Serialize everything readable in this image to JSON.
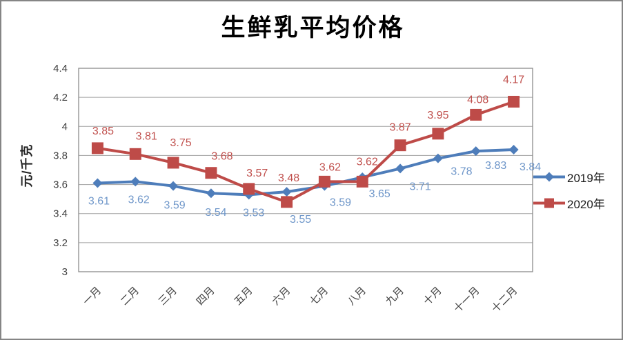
{
  "chart_data": {
    "type": "line",
    "title": "生鲜乳平均价格",
    "ylabel": "元/千克",
    "xlabel": "",
    "categories": [
      "一月",
      "二月",
      "三月",
      "四月",
      "五月",
      "六月",
      "七月",
      "八月",
      "九月",
      "十月",
      "十一月",
      "十二月"
    ],
    "series": [
      {
        "name": "2019年",
        "marker": "diamond",
        "color": "#4E7DBA",
        "label_color": "#6E96C9",
        "values": [
          3.61,
          3.62,
          3.59,
          3.54,
          3.53,
          3.55,
          3.59,
          3.65,
          3.71,
          3.78,
          3.83,
          3.84
        ]
      },
      {
        "name": "2020年",
        "marker": "square",
        "color": "#BE4B48",
        "label_color": "#C0504D",
        "values": [
          3.85,
          3.81,
          3.75,
          3.68,
          3.57,
          3.48,
          3.62,
          3.62,
          3.87,
          3.95,
          4.08,
          4.17
        ]
      }
    ],
    "ylim": [
      3,
      4.4
    ],
    "yticks": [
      "3",
      "3.2",
      "3.4",
      "3.6",
      "3.8",
      "4",
      "4.2",
      "4.4"
    ],
    "grid": true,
    "legend_position": "right"
  },
  "colors": {
    "grid": "#A0A0A0",
    "plot_border": "#8C8C8C",
    "tick_text": "#3F3F3F",
    "frame_border": "#858585"
  }
}
